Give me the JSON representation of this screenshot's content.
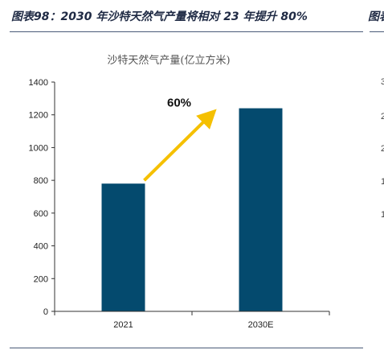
{
  "figure": {
    "title": "图表98：2030 年沙特天然气产量将相对 23 年提升 80%",
    "next_panel_title_fragment": "图表"
  },
  "chart_data": {
    "type": "bar",
    "title": "沙特天然气产量(亿立方米)",
    "categories": [
      "2021",
      "2030E"
    ],
    "values": [
      780,
      1240
    ],
    "ylim": [
      0,
      1400
    ],
    "yticks": [
      0,
      200,
      400,
      600,
      800,
      1000,
      1200,
      1400
    ],
    "xlabel": "",
    "ylabel": "",
    "grid": false,
    "colors": {
      "bar": "#044a6e",
      "arrow": "#f5c000"
    },
    "annotation": {
      "text": "60%"
    }
  },
  "right_panel_fragments": [
    "3",
    "2",
    "2",
    "1",
    "1"
  ]
}
